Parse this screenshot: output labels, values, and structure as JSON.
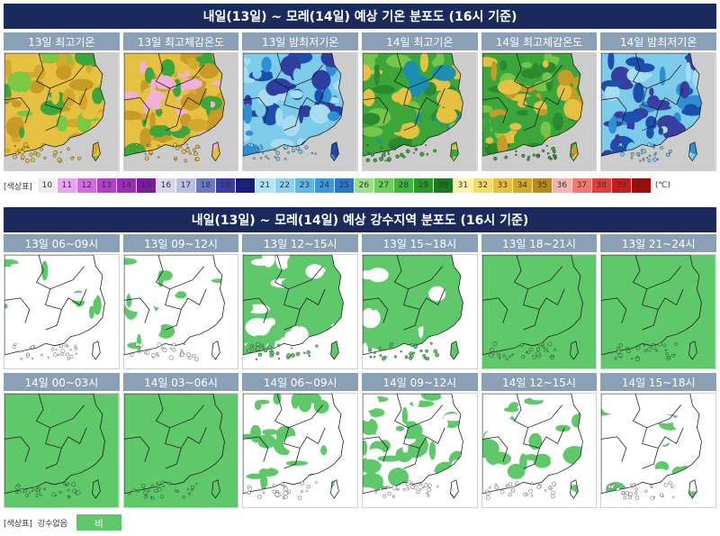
{
  "temperature": {
    "title": "내일(13일) ~ 모레(14일) 예상 기온 분포도 (16시 기준)",
    "panels": [
      {
        "label": "13일 최고기온",
        "palette": [
          "#e6c040",
          "#d4a82a",
          "#c89a26",
          "#3da63a",
          "#7bc843"
        ]
      },
      {
        "label": "13일 최고체감온도",
        "palette": [
          "#e6c040",
          "#d4a82a",
          "#c89a26",
          "#f0b0d8",
          "#3da63a"
        ]
      },
      {
        "label": "13일 밤최저기온",
        "palette": [
          "#7ccbea",
          "#2f8fd4",
          "#1a4fb0",
          "#2f3da0",
          "#a8dcf2"
        ]
      },
      {
        "label": "14일 최고기온",
        "palette": [
          "#3da63a",
          "#2a8a2e",
          "#74c54a",
          "#e6c040",
          "#1a8fb0"
        ]
      },
      {
        "label": "14일 최고체감온도",
        "palette": [
          "#3da63a",
          "#74c54a",
          "#2a8a2e",
          "#e6c040",
          "#c89a26"
        ]
      },
      {
        "label": "14일 밤최저기온",
        "palette": [
          "#7ccbea",
          "#2f8fd4",
          "#1a4fb0",
          "#3a3da0",
          "#a8dcf2"
        ]
      }
    ],
    "legend": {
      "label": "[색상표]",
      "unit": "(℃)",
      "items": [
        {
          "value": "10",
          "color": "#eeeeee",
          "text_color": "#333333"
        },
        {
          "value": "11",
          "color": "#e6a6f0",
          "text_color": "#333333"
        },
        {
          "value": "12",
          "color": "#d06ce0",
          "text_color": "#333333"
        },
        {
          "value": "13",
          "color": "#b040c8",
          "text_color": "#333333"
        },
        {
          "value": "14",
          "color": "#9a2cb8",
          "text_color": "#333333"
        },
        {
          "value": "15",
          "color": "#7a1c9c",
          "text_color": "#333333"
        },
        {
          "value": "16",
          "color": "#d8d8ea",
          "text_color": "#333333"
        },
        {
          "value": "17",
          "color": "#b8c0e0",
          "text_color": "#333333"
        },
        {
          "value": "18",
          "color": "#6f79c0",
          "text_color": "#333333"
        },
        {
          "value": "19",
          "color": "#3a3da0",
          "text_color": "#333333"
        },
        {
          "value": "20",
          "color": "#1a1c80",
          "text_color": "#333333"
        },
        {
          "value": "21",
          "color": "#b8e2f6",
          "text_color": "#333333"
        },
        {
          "value": "22",
          "color": "#8ed2f0",
          "text_color": "#333333"
        },
        {
          "value": "23",
          "color": "#5cb8e8",
          "text_color": "#333333"
        },
        {
          "value": "24",
          "color": "#3a98dc",
          "text_color": "#333333"
        },
        {
          "value": "25",
          "color": "#2a78c8",
          "text_color": "#333333"
        },
        {
          "value": "26",
          "color": "#9be08a",
          "text_color": "#333333"
        },
        {
          "value": "27",
          "color": "#6ccf5e",
          "text_color": "#333333"
        },
        {
          "value": "28",
          "color": "#3db83a",
          "text_color": "#333333"
        },
        {
          "value": "29",
          "color": "#279a2a",
          "text_color": "#333333"
        },
        {
          "value": "30",
          "color": "#1a7a20",
          "text_color": "#333333"
        },
        {
          "value": "31",
          "color": "#fff2a8",
          "text_color": "#333333"
        },
        {
          "value": "32",
          "color": "#f4dc6a",
          "text_color": "#333333"
        },
        {
          "value": "33",
          "color": "#e6c040",
          "text_color": "#333333"
        },
        {
          "value": "34",
          "color": "#d4a82a",
          "text_color": "#333333"
        },
        {
          "value": "35",
          "color": "#b88a1a",
          "text_color": "#333333"
        },
        {
          "value": "36",
          "color": "#f6b4b0",
          "text_color": "#333333"
        },
        {
          "value": "37",
          "color": "#ee7a74",
          "text_color": "#333333"
        },
        {
          "value": "38",
          "color": "#e0403a",
          "text_color": "#333333"
        },
        {
          "value": "39",
          "color": "#c81c1c",
          "text_color": "#333333"
        },
        {
          "value": "40",
          "color": "#a00a0a",
          "text_color": "#333333"
        }
      ]
    }
  },
  "precipitation": {
    "title": "내일(13일) ~ 모레(14일) 예상 강수지역 분포도 (16시 기준)",
    "rows": [
      [
        {
          "label": "13일 06~09시",
          "rain_level": 0.1
        },
        {
          "label": "13일 09~12시",
          "rain_level": 0.3
        },
        {
          "label": "13일 12~15시",
          "rain_level": 0.7
        },
        {
          "label": "13일 15~18시",
          "rain_level": 0.75
        },
        {
          "label": "13일 18~21시",
          "rain_level": 0.95
        },
        {
          "label": "13일 21~24시",
          "rain_level": 1.0
        }
      ],
      [
        {
          "label": "14일 00~03시",
          "rain_level": 1.0
        },
        {
          "label": "14일 03~06시",
          "rain_level": 0.98
        },
        {
          "label": "14일 06~09시",
          "rain_level": 0.55
        },
        {
          "label": "14일 09~12시",
          "rain_level": 0.45
        },
        {
          "label": "14일 12~15시",
          "rain_level": 0.4
        },
        {
          "label": "14일 15~18시",
          "rain_level": 0.2
        }
      ]
    ],
    "legend": {
      "label": "[색상표]",
      "none_label": "강수없음",
      "rain_label": "비",
      "rain_color": "#5ec86b"
    }
  },
  "colors": {
    "title_bar": "#1b2a5c",
    "panel_label_bg": "#8aa0b6",
    "sea_temp": "#cccccc",
    "sea_rain": "#ffffff",
    "rain": "#5ec86b"
  }
}
